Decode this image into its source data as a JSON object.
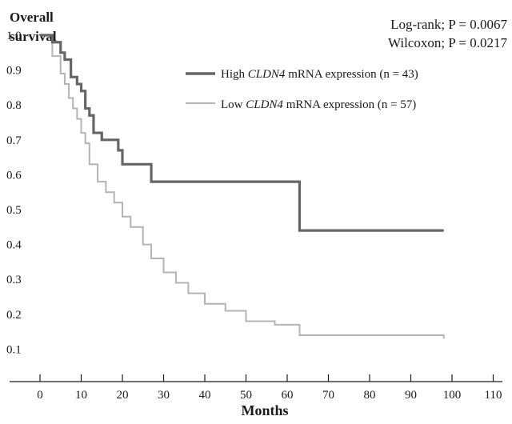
{
  "chart_data": {
    "type": "line",
    "chart_kind": "kaplan-meier survival curve",
    "ylabel_line1": "Overall",
    "ylabel_line2": "survival",
    "xlabel": "Months",
    "annotations": [
      "Log-rank; P = 0.0067",
      "Wilcoxon; P = 0.0217"
    ],
    "x_ticks": [
      0,
      10,
      20,
      30,
      40,
      50,
      60,
      70,
      80,
      90,
      100,
      110
    ],
    "y_ticks": [
      "1.0",
      "0.9",
      "0.8",
      "0.7",
      "0.6",
      "0.5",
      "0.4",
      "0.3",
      "0.2",
      "0.1"
    ],
    "xlim": [
      0,
      110
    ],
    "ylim": [
      0.1,
      1.0
    ],
    "grid": false,
    "legend_position": "top-right",
    "series": [
      {
        "name_prefix": "High ",
        "name_gene": "CLDN4",
        "name_suffix": " mRNA expression (n = 43)",
        "color": "#666666",
        "step_x": [
          0,
          3,
          5,
          6,
          7.5,
          9,
          10,
          11,
          12,
          13,
          15,
          19,
          20,
          27,
          63,
          98
        ],
        "step_y": [
          1.0,
          0.98,
          0.95,
          0.93,
          0.88,
          0.86,
          0.84,
          0.79,
          0.77,
          0.72,
          0.7,
          0.67,
          0.63,
          0.58,
          0.44,
          0.44
        ]
      },
      {
        "name_prefix": "Low ",
        "name_gene": "CLDN4",
        "name_suffix": " mRNA expression (n = 57)",
        "color": "#b4b4b4",
        "step_x": [
          0,
          3,
          5,
          6,
          7,
          8,
          9,
          10,
          11,
          12,
          14,
          16,
          18,
          20,
          22,
          25,
          27,
          30,
          33,
          36,
          40,
          45,
          50,
          57,
          63,
          75,
          98
        ],
        "step_y": [
          1.0,
          0.94,
          0.89,
          0.86,
          0.82,
          0.79,
          0.76,
          0.72,
          0.69,
          0.63,
          0.58,
          0.55,
          0.52,
          0.48,
          0.45,
          0.4,
          0.36,
          0.32,
          0.29,
          0.26,
          0.23,
          0.21,
          0.18,
          0.17,
          0.14,
          0.14,
          0.13
        ]
      }
    ]
  }
}
